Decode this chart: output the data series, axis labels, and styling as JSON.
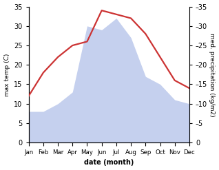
{
  "months": [
    "Jan",
    "Feb",
    "Mar",
    "Apr",
    "May",
    "Jun",
    "Jul",
    "Aug",
    "Sep",
    "Oct",
    "Nov",
    "Dec"
  ],
  "temperature": [
    12,
    18,
    22,
    25,
    26,
    34,
    33,
    32,
    28,
    22,
    16,
    14
  ],
  "precipitation": [
    8,
    8,
    10,
    13,
    30,
    29,
    32,
    27,
    17,
    15,
    11,
    10
  ],
  "temp_color": "#cc3333",
  "precip_color": "#c5d0ee",
  "background_color": "#ffffff",
  "ylim": [
    0,
    35
  ],
  "ylabel_left": "max temp (C)",
  "ylabel_right": "med. precipitation (kg/m2)",
  "xlabel": "date (month)",
  "temp_linewidth": 1.6,
  "yticks": [
    0,
    5,
    10,
    15,
    20,
    25,
    30,
    35
  ]
}
